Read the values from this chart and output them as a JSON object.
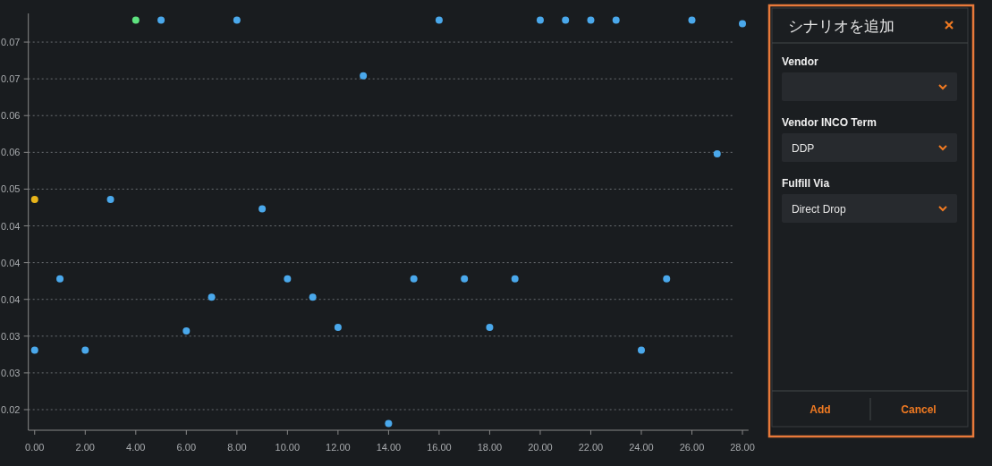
{
  "chart_data": [
    {
      "type": "scatter",
      "xlim": [
        -0.25,
        28.24
      ],
      "ylim": [
        0.0172,
        0.0739
      ],
      "xticks": [
        {
          "value": 0,
          "label": "0.00"
        },
        {
          "value": 2,
          "label": "2.00"
        },
        {
          "value": 4,
          "label": "4.00"
        },
        {
          "value": 6,
          "label": "6.00"
        },
        {
          "value": 8,
          "label": "8.00"
        },
        {
          "value": 10,
          "label": "10.00"
        },
        {
          "value": 12,
          "label": "12.00"
        },
        {
          "value": 14,
          "label": "14.00"
        },
        {
          "value": 16,
          "label": "16.00"
        },
        {
          "value": 18,
          "label": "18.00"
        },
        {
          "value": 20,
          "label": "20.00"
        },
        {
          "value": 22,
          "label": "22.00"
        },
        {
          "value": 24,
          "label": "24.00"
        },
        {
          "value": 26,
          "label": "26.00"
        },
        {
          "value": 28,
          "label": "28.00"
        }
      ],
      "yticks": [
        0.02,
        {
          "value": 0.025,
          "label": "0.03"
        },
        0.03,
        {
          "value": 0.035,
          "label": "0.04"
        },
        0.04,
        {
          "value": 0.045,
          "label": "0.04"
        },
        0.05,
        {
          "value": 0.055,
          "label": "0.06"
        },
        0.06,
        {
          "value": 0.065,
          "label": "0.07"
        },
        0.07
      ],
      "grid": "y",
      "marker": "circle",
      "series": [
        {
          "color": "#4aa8eb",
          "x": [
            0,
            1,
            2,
            3,
            5,
            6,
            7,
            8,
            9,
            10,
            11,
            12,
            13,
            14,
            15,
            16,
            17,
            18,
            19,
            20,
            21,
            22,
            23,
            24,
            25,
            26,
            27,
            28
          ],
          "values": [
            0.0281,
            0.0378,
            0.0281,
            0.0486,
            0.073,
            0.0307,
            0.0353,
            0.073,
            0.0473,
            0.0378,
            0.0353,
            0.0312,
            0.0654,
            0.0181,
            0.0378,
            0.073,
            0.0378,
            0.0312,
            0.0378,
            0.073,
            0.073,
            0.073,
            0.073,
            0.0281,
            0.0378,
            0.073,
            0.0548,
            0.0725
          ]
        },
        {
          "color": "#e8b41a",
          "x": [
            0
          ],
          "values": [
            0.0486
          ]
        },
        {
          "color": "#5ee37f",
          "x": [
            4
          ],
          "values": [
            0.073
          ]
        }
      ]
    },
    {
      "type": "other",
      "title": "シナリオを追加",
      "annotations": [
        "Vendor",
        "Vendor INCO Term",
        "DDP",
        "Fulfill Via",
        "Direct Drop",
        "Add",
        "Cancel"
      ]
    }
  ]
}
